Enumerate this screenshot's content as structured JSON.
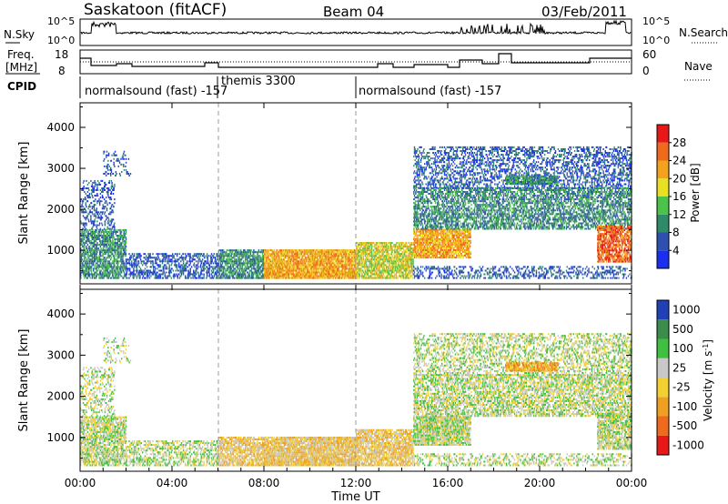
{
  "header": {
    "site": "Saskatoon (fitACF)",
    "beam": "Beam 04",
    "date": "03/Feb/2011"
  },
  "top_panels": {
    "nsky": {
      "label": "N.Sky",
      "ticks": [
        "10^5",
        "10^0"
      ]
    },
    "nsearch": {
      "label": "N.Search",
      "ticks": [
        "10^5",
        "10^0"
      ]
    },
    "freq": {
      "label_line1": "Freq.",
      "label_line2": "[MHz]",
      "ticks": [
        "18",
        "8"
      ]
    },
    "nave": {
      "label": "Nave",
      "ticks": [
        "60",
        "0"
      ]
    },
    "cpid": {
      "label": "CPID",
      "segments": [
        {
          "text": "normalsound (fast) -157",
          "start_h": 0,
          "end_h": 6
        },
        {
          "text": "themis 3300",
          "start_h": 6,
          "end_h": 12
        },
        {
          "text": "normalsound (fast) -157",
          "start_h": 12,
          "end_h": 24
        }
      ]
    }
  },
  "chart_data": [
    {
      "type": "heatmap",
      "name": "power",
      "ylabel": "Slant Range [km]",
      "y_ticks": [
        1000,
        2000,
        3000,
        4000
      ],
      "ylim": [
        180,
        4600
      ],
      "xlim_hours": [
        0,
        24
      ],
      "colorbar": {
        "label": "Power [dB]",
        "ticks": [
          "4",
          "8",
          "12",
          "16",
          "20",
          "24",
          "28"
        ],
        "colors": [
          "#1a2ef0",
          "#2f50b0",
          "#2f8a6a",
          "#4cc24a",
          "#e8e020",
          "#f3a21c",
          "#ef6a1a",
          "#e81818"
        ]
      }
    },
    {
      "type": "heatmap",
      "name": "velocity",
      "ylabel": "Slant Range [km]",
      "y_ticks": [
        1000,
        2000,
        3000,
        4000
      ],
      "ylim": [
        180,
        4600
      ],
      "xlim_hours": [
        0,
        24
      ],
      "xlabel": "Time UT",
      "x_ticks": [
        "00:00",
        "04:00",
        "08:00",
        "12:00",
        "16:00",
        "20:00",
        "00:00"
      ],
      "colorbar": {
        "label": "Velocity [m s^-1]",
        "ticks": [
          "1000",
          "500",
          "100",
          "25",
          "-25",
          "-100",
          "-500",
          "-1000"
        ],
        "colors": [
          "#2040b8",
          "#3c8c4c",
          "#40c040",
          "#c8c8c8",
          "#f2d030",
          "#f0a020",
          "#ef6a1a",
          "#e81818"
        ]
      }
    }
  ]
}
